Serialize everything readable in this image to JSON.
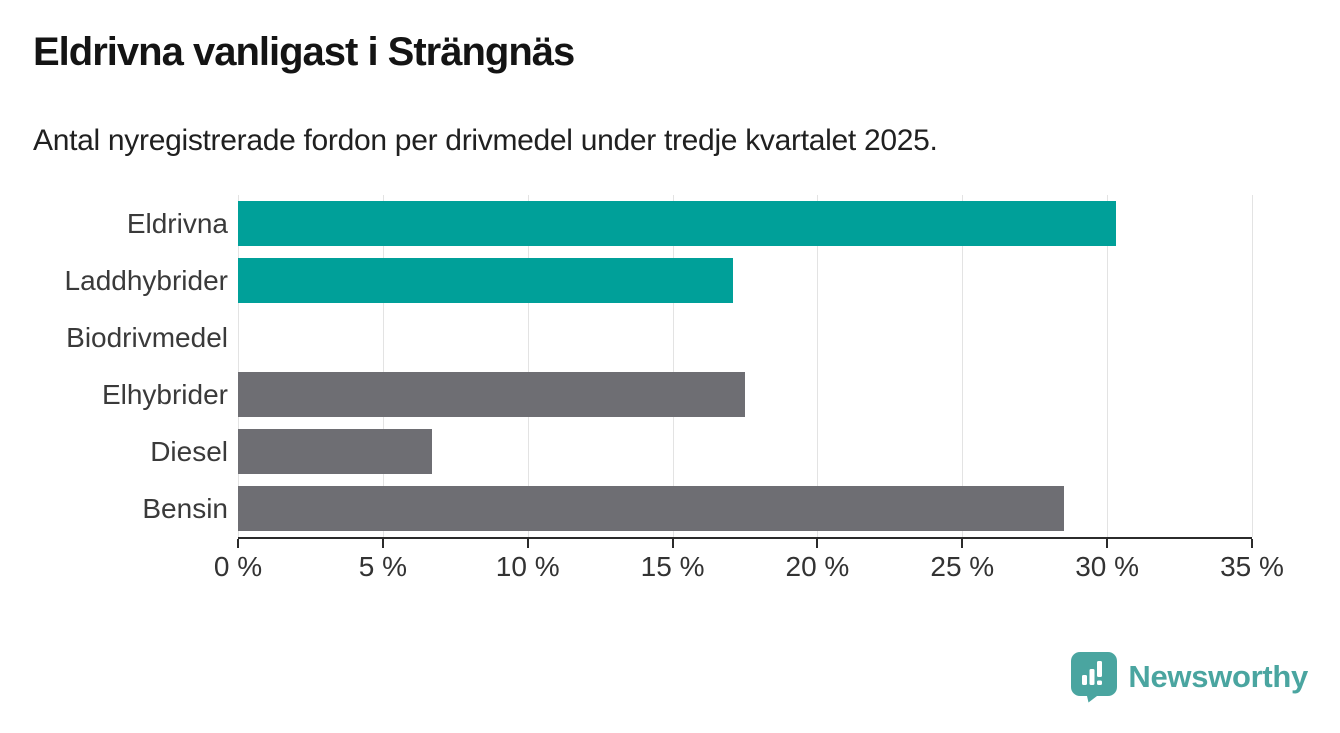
{
  "header": {
    "title": "Eldrivna vanligast i Strängnäs",
    "subtitle": "Antal nyregistrerade fordon per drivmedel under tredje kvartalet 2025."
  },
  "chart_data": {
    "type": "bar",
    "orientation": "horizontal",
    "title": "Eldrivna vanligast i Strängnäs",
    "subtitle": "Antal nyregistrerade fordon per drivmedel under tredje kvartalet 2025.",
    "categories": [
      "Eldrivna",
      "Laddhybrider",
      "Biodrivmedel",
      "Elhybrider",
      "Diesel",
      "Bensin"
    ],
    "values": [
      30.3,
      17.1,
      0,
      17.5,
      6.7,
      28.5
    ],
    "unit": "%",
    "bar_colors": [
      "#00a099",
      "#00a099",
      "#6e6e73",
      "#6e6e73",
      "#6e6e73",
      "#6e6e73"
    ],
    "xlim": [
      0,
      35
    ],
    "x_tick_values": [
      0,
      5,
      10,
      15,
      20,
      25,
      30,
      35
    ],
    "x_tick_labels": [
      "0 %",
      "5 %",
      "10 %",
      "15 %",
      "20 %",
      "25 %",
      "30 %",
      "35 %"
    ],
    "xlabel": "",
    "ylabel": "",
    "grid": "vertical",
    "legend": "none"
  },
  "colors": {
    "accent_teal": "#00a099",
    "neutral_gray": "#6e6e73",
    "axis": "#2b2b2b",
    "gridline": "#e3e3e3",
    "brand_teal": "#4aa5a0"
  },
  "footer": {
    "brand": "Newsworthy"
  }
}
